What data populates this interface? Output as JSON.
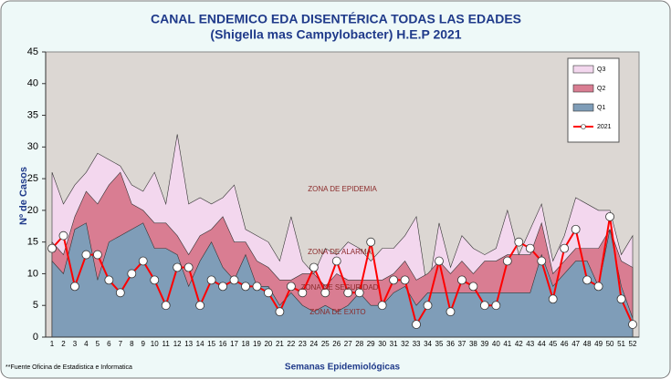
{
  "chart_data": {
    "type": "area",
    "title": "CANAL ENDEMICO EDA DISENTÉRICA TODAS LAS EDADES",
    "subtitle": "(Shigella mas Campylobacter) H.E.P 2021",
    "ylabel": "Nº de Casos",
    "xlabel": "Semanas Epidemiológicas",
    "footnote": "**Fuente Oficina de Estadistica e Informatica",
    "annotations": [
      "ZONA DE EPIDEMIA",
      "ZONA DE ALARMA",
      "ZONA DE SEGURIDAD",
      "ZONA DE EXITO"
    ],
    "categories": [
      1,
      2,
      3,
      4,
      5,
      6,
      7,
      8,
      9,
      10,
      11,
      12,
      13,
      14,
      15,
      16,
      17,
      18,
      19,
      20,
      21,
      22,
      23,
      24,
      25,
      26,
      27,
      28,
      29,
      30,
      31,
      32,
      33,
      34,
      35,
      36,
      37,
      38,
      39,
      40,
      41,
      42,
      43,
      44,
      45,
      46,
      47,
      48,
      49,
      50,
      51,
      52
    ],
    "ylim": [
      0,
      45
    ],
    "yticks": [
      0,
      5,
      10,
      15,
      20,
      25,
      30,
      35,
      40,
      45
    ],
    "legend": "upper right",
    "series": [
      {
        "name": "Q3",
        "color": "#f3d7ee",
        "style": "area",
        "values": [
          26,
          21,
          24,
          26,
          29,
          28,
          27,
          24,
          23,
          26,
          21,
          32,
          21,
          22,
          21,
          22,
          24,
          17,
          16,
          15,
          12,
          19,
          12,
          10,
          14,
          13,
          15,
          14,
          12,
          14,
          14,
          16,
          19,
          7,
          18,
          11,
          16,
          14,
          13,
          14,
          20,
          13,
          17,
          21,
          12,
          16,
          22,
          21,
          20,
          20,
          13,
          16
        ]
      },
      {
        "name": "Q2",
        "color": "#d97d92",
        "style": "area",
        "values": [
          15,
          13,
          19,
          23,
          21,
          24,
          26,
          21,
          20,
          18,
          18,
          16,
          13,
          16,
          17,
          19,
          15,
          15,
          12,
          11,
          9,
          9,
          10,
          10,
          8,
          10,
          9,
          9,
          9,
          9,
          10,
          12,
          9,
          10,
          12,
          10,
          12,
          10,
          12,
          12,
          13,
          13,
          13,
          18,
          10,
          12,
          14,
          14,
          14,
          17,
          12,
          11
        ]
      },
      {
        "name": "Q1",
        "color": "#7f9db8",
        "style": "area",
        "values": [
          12,
          10,
          17,
          18,
          9,
          15,
          16,
          17,
          18,
          14,
          14,
          13,
          8,
          12,
          15,
          11,
          9,
          13,
          8,
          8,
          5,
          7,
          5,
          4,
          5,
          4,
          5,
          7,
          5,
          5,
          7,
          8,
          5,
          7,
          7,
          7,
          7,
          7,
          7,
          7,
          7,
          7,
          7,
          13,
          8,
          10,
          12,
          12,
          8,
          17,
          8,
          3
        ]
      },
      {
        "name": "2021",
        "color": "#ff0000",
        "style": "line",
        "values": [
          14,
          16,
          8,
          13,
          13,
          9,
          7,
          10,
          12,
          9,
          5,
          11,
          11,
          5,
          9,
          8,
          9,
          8,
          8,
          7,
          4,
          8,
          7,
          11,
          7,
          12,
          7,
          7,
          15,
          5,
          9,
          9,
          2,
          5,
          12,
          4,
          9,
          8,
          5,
          5,
          12,
          15,
          14,
          12,
          6,
          14,
          17,
          9,
          8,
          19,
          6,
          2
        ]
      }
    ]
  }
}
